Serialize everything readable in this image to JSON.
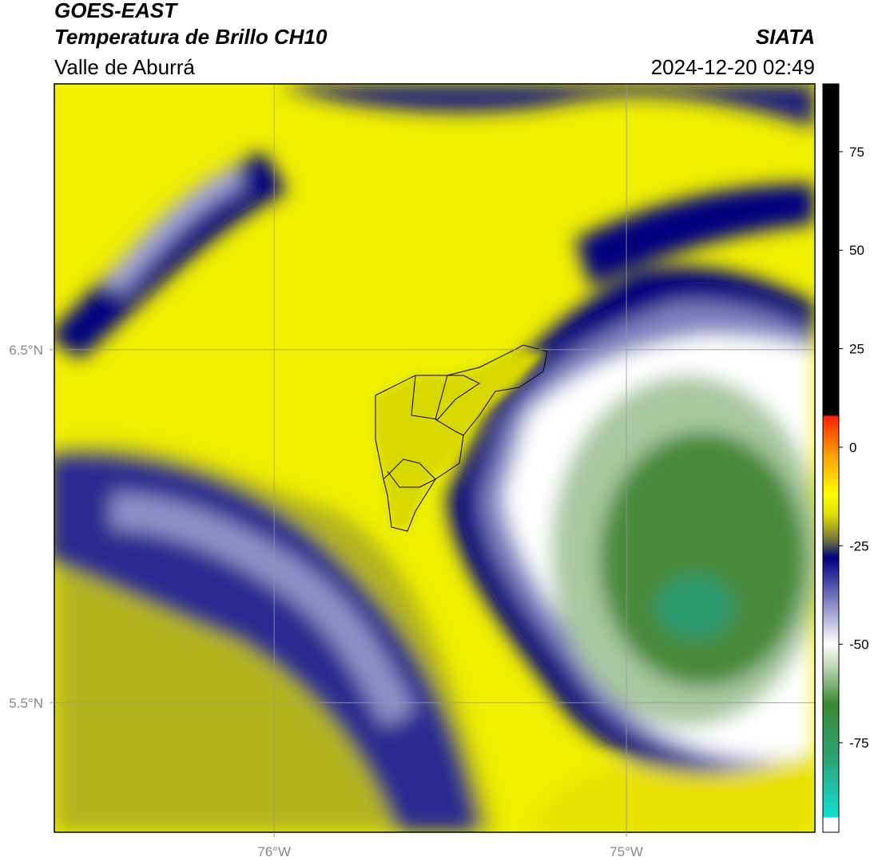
{
  "header": {
    "satellite": "GOES-EAST",
    "product": "Temperatura de Brillo CH10",
    "region": "Valle de Aburrá",
    "agency": "SIATA",
    "datetime": "2024-12-20 02:49"
  },
  "map": {
    "xlim": [
      -76.624,
      -74.465
    ],
    "ylim": [
      5.133,
      7.253
    ],
    "xticks": [
      {
        "value": -76,
        "label": "76°W"
      },
      {
        "value": -75,
        "label": "75°W"
      }
    ],
    "yticks": [
      {
        "value": 6.5,
        "label": "6.5°N"
      },
      {
        "value": 5.5,
        "label": "5.5°N"
      }
    ],
    "grid": true
  },
  "colorbar": {
    "lim": [
      -97.7,
      92.2
    ],
    "ticks": [
      75,
      50,
      25,
      0,
      -25,
      -50,
      -75
    ],
    "stops": [
      {
        "value": -97.7,
        "color": "#ffffff"
      },
      {
        "value": -94,
        "color": "#ffffff"
      },
      {
        "value": -94,
        "color": "#10e0d0"
      },
      {
        "value": -78,
        "color": "#30a070"
      },
      {
        "value": -65,
        "color": "#3a8a30"
      },
      {
        "value": -55,
        "color": "#c8dcc0"
      },
      {
        "value": -50,
        "color": "#ffffff"
      },
      {
        "value": -43,
        "color": "#b0b0d8"
      },
      {
        "value": -33,
        "color": "#3a3aa0"
      },
      {
        "value": -28,
        "color": "#000080"
      },
      {
        "value": -24,
        "color": "#6a6a40"
      },
      {
        "value": -17,
        "color": "#e0e000"
      },
      {
        "value": -12,
        "color": "#ffff00"
      },
      {
        "value": -2,
        "color": "#ffa000"
      },
      {
        "value": 8,
        "color": "#ff2000"
      },
      {
        "value": 8,
        "color": "#000000"
      },
      {
        "value": 92.2,
        "color": "#000000"
      }
    ]
  }
}
